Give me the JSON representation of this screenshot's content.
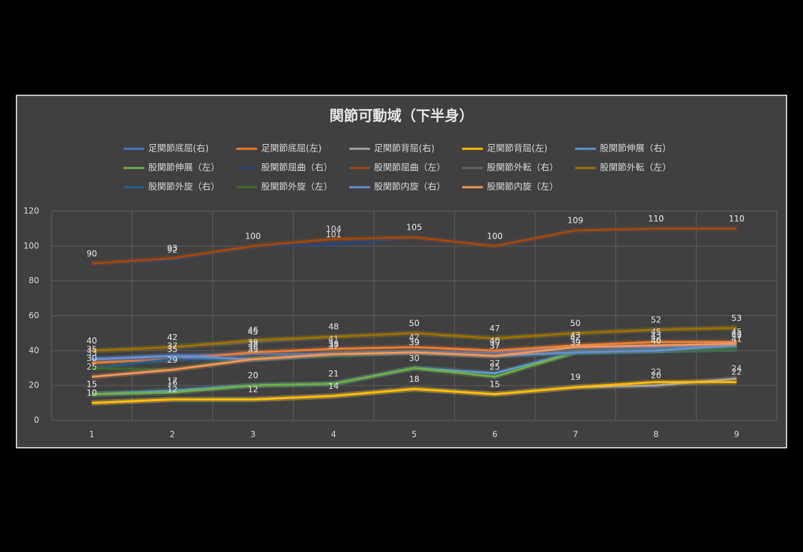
{
  "chart_data": {
    "type": "line",
    "title": "関節可動域（下半身）",
    "categories": [
      "1",
      "2",
      "3",
      "4",
      "5",
      "6",
      "7",
      "8",
      "9"
    ],
    "ylim": [
      0,
      120
    ],
    "yticks": [
      0,
      20,
      40,
      60,
      80,
      100,
      120
    ],
    "grid": true,
    "series": [
      {
        "name": "足関節底屈(右)",
        "color": "#4472c4",
        "values": [
          35,
          37,
          38,
          38,
          39,
          39,
          42,
          42,
          43
        ]
      },
      {
        "name": "足関節底屈(左)",
        "color": "#ed7d31",
        "values": [
          33,
          35,
          39,
          41,
          42,
          40,
          43,
          45,
          45
        ]
      },
      {
        "name": "足関節背屈(右)",
        "color": "#a5a5a5",
        "values": [
          10,
          12,
          12,
          14,
          18,
          15,
          19,
          20,
          24
        ]
      },
      {
        "name": "足関節背屈(左)",
        "color": "#ffc000",
        "values": [
          10,
          12,
          12,
          14,
          18,
          15,
          19,
          22,
          22
        ]
      },
      {
        "name": "股関節伸展（右）",
        "color": "#5b9bd5",
        "values": [
          15,
          17,
          20,
          21,
          30,
          27,
          39,
          40,
          41
        ]
      },
      {
        "name": "股関節伸展（左）",
        "color": "#70ad47",
        "values": [
          15,
          16,
          20,
          21,
          30,
          25,
          39,
          40,
          41
        ]
      },
      {
        "name": "股関節屈曲（右）",
        "color": "#264478",
        "values": [
          90,
          92,
          100,
          101,
          105,
          100,
          109,
          110,
          110
        ]
      },
      {
        "name": "股関節屈曲（左）",
        "color": "#9e480e",
        "values": [
          90,
          93,
          100,
          104,
          105,
          100,
          109,
          110,
          110
        ]
      },
      {
        "name": "股関節外転（右）",
        "color": "#636363",
        "values": [
          40,
          42,
          45,
          48,
          50,
          47,
          50,
          52,
          53
        ]
      },
      {
        "name": "股関節外転（左）",
        "color": "#997300",
        "values": [
          40,
          42,
          46,
          48,
          50,
          47,
          50,
          52,
          53
        ]
      },
      {
        "name": "股関節外旋（右）",
        "color": "#255e91",
        "values": [
          30,
          35,
          35,
          37,
          39,
          37,
          39,
          40,
          41
        ]
      },
      {
        "name": "股関節外旋（左）",
        "color": "#43682b",
        "values": [
          30,
          29,
          36,
          37,
          39,
          37,
          39,
          40,
          41
        ]
      },
      {
        "name": "股関節内旋（右）",
        "color": "#698ed0",
        "values": [
          35,
          37,
          35,
          38,
          39,
          37,
          39,
          40,
          43
        ]
      },
      {
        "name": "股関節内旋（左）",
        "color": "#f1975a",
        "values": [
          25,
          29,
          35,
          38,
          39,
          37,
          42,
          43,
          44
        ]
      }
    ]
  }
}
